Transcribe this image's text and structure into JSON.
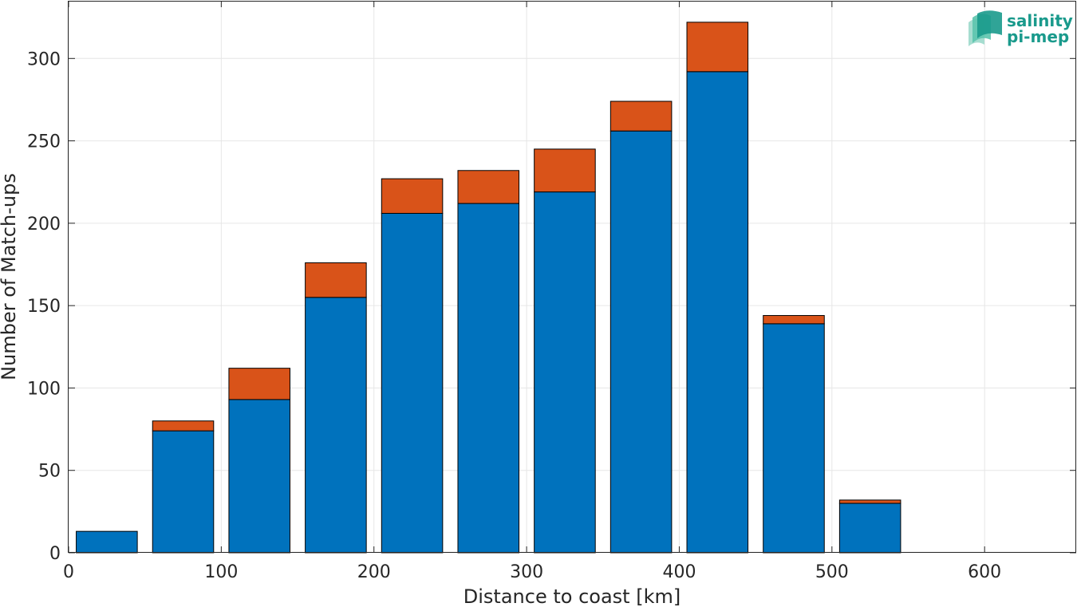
{
  "chart_data": {
    "type": "bar",
    "stacked": true,
    "xlabel": "Distance to coast [km]",
    "ylabel": "Number of Match-ups",
    "xlim": [
      0,
      660
    ],
    "ylim": [
      0,
      335
    ],
    "grid": true,
    "x_ticks": [
      0,
      100,
      200,
      300,
      400,
      500,
      600
    ],
    "y_ticks": [
      0,
      50,
      100,
      150,
      200,
      250,
      300
    ],
    "bin_width": 40,
    "x": [
      25,
      75,
      125,
      175,
      225,
      275,
      325,
      375,
      425,
      475,
      525
    ],
    "series": [
      {
        "color": "#0072bd",
        "values": [
          13,
          74,
          93,
          155,
          206,
          212,
          219,
          256,
          292,
          139,
          30
        ]
      },
      {
        "color": "#d95319",
        "values": [
          0,
          6,
          19,
          21,
          21,
          20,
          26,
          18,
          30,
          5,
          2
        ]
      }
    ]
  },
  "logo": {
    "line1": "salinity",
    "line2": "pi-mep",
    "color": "#1a9a8c"
  }
}
